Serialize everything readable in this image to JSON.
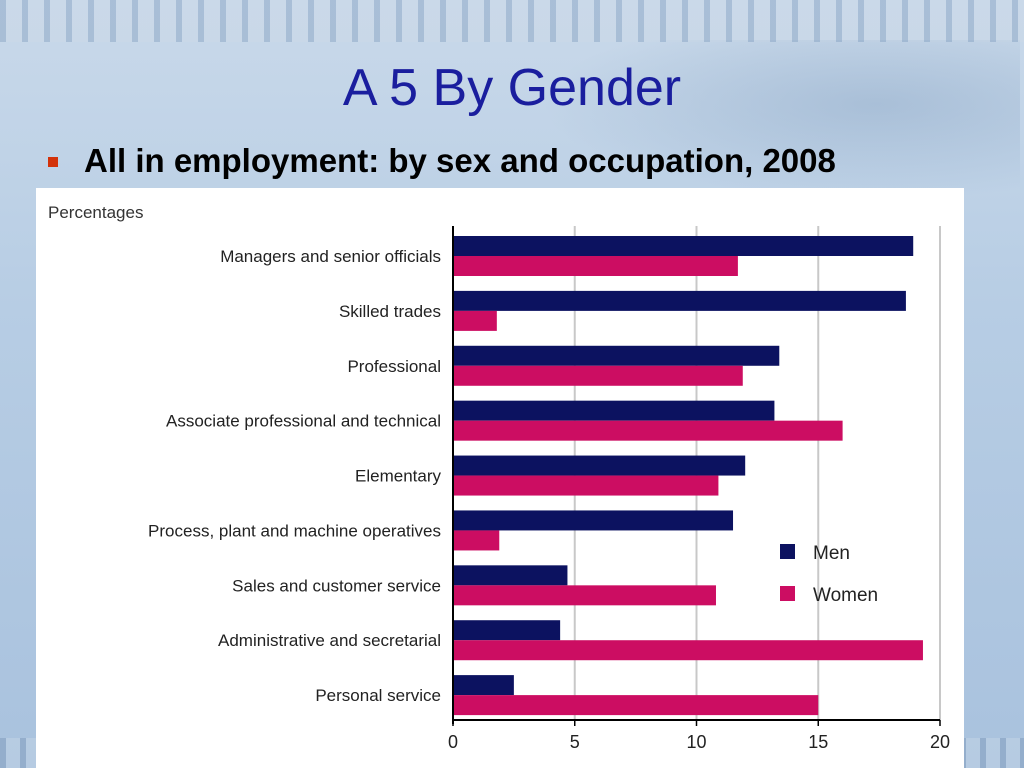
{
  "slide": {
    "title": "A 5 By Gender",
    "bullet": "All in employment: by sex and occupation, 2008"
  },
  "colors": {
    "title": "#1a1e9e",
    "bullet": "#d3320a",
    "men": "#0c1260",
    "women": "#cc0d62",
    "grid": "#c8c8c8"
  },
  "chart_data": {
    "type": "bar",
    "orientation": "horizontal",
    "unit_label": "Percentages",
    "categories": [
      "Managers and senior officials",
      "Skilled trades",
      "Professional",
      "Associate professional and technical",
      "Elementary",
      "Process, plant and machine operatives",
      "Sales and customer service",
      "Administrative and secretarial",
      "Personal service"
    ],
    "series": [
      {
        "name": "Men",
        "values": [
          18.9,
          18.6,
          13.4,
          13.2,
          12.0,
          11.5,
          4.7,
          4.4,
          2.5
        ]
      },
      {
        "name": "Women",
        "values": [
          11.7,
          1.8,
          11.9,
          16.0,
          10.9,
          1.9,
          10.8,
          19.3,
          15.0
        ]
      }
    ],
    "xlim": [
      0,
      20
    ],
    "xticks": [
      0,
      5,
      10,
      15,
      20
    ],
    "grid": true,
    "legend_position": "bottom-right"
  }
}
